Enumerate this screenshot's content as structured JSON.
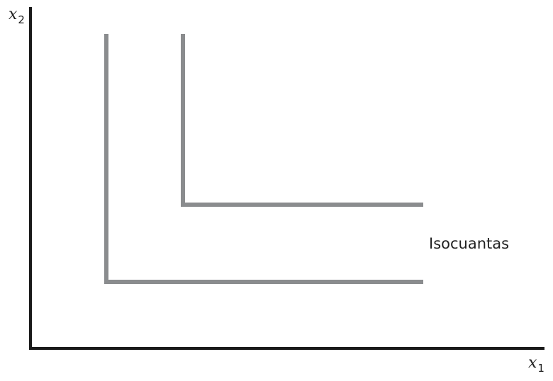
{
  "axes": {
    "y": {
      "symbol": "x",
      "subscript": "2"
    },
    "x": {
      "symbol": "x",
      "subscript": "1"
    }
  },
  "isoquants": [
    {
      "id": "lower",
      "shape": "L",
      "color": "#8a8c8e"
    },
    {
      "id": "upper",
      "shape": "L",
      "color": "#8a8c8e"
    }
  ],
  "annotation": "Isocuantas",
  "colors": {
    "axis": "#1a1a1a",
    "isoquant": "#8a8c8e",
    "text": "#222222",
    "background": "#ffffff"
  }
}
